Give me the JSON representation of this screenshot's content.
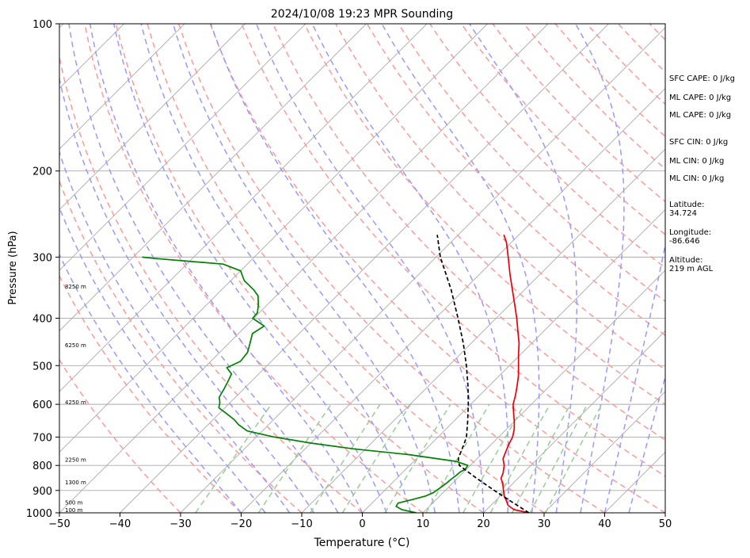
{
  "chart_data": {
    "type": "line",
    "title": "2024/10/08 19:23 MPR Sounding",
    "xlabel": "Temperature (°C)",
    "ylabel": "Pressure (hPa)",
    "xlim": [
      -50,
      50
    ],
    "ylim": [
      1000,
      100
    ],
    "y_scale": "log",
    "grid": true,
    "x_ticks": [
      -50,
      -40,
      -30,
      -20,
      -10,
      0,
      10,
      20,
      30,
      40,
      50
    ],
    "x_tick_labels": [
      "−50",
      "−40",
      "−30",
      "−20",
      "−10",
      "0",
      "10",
      "20",
      "30",
      "40",
      "50"
    ],
    "y_ticks": [
      1000,
      900,
      800,
      700,
      600,
      500,
      400,
      300,
      200,
      100
    ],
    "y_tick_labels": [
      "1000",
      "900",
      "800",
      "700",
      "600",
      "500",
      "400",
      "300",
      "200",
      "100"
    ],
    "series": [
      {
        "role": "temperature",
        "color": "#e8000b",
        "points": [
          [
            1000,
            27.5
          ],
          [
            985,
            24.5
          ],
          [
            965,
            22.8
          ],
          [
            945,
            21.8
          ],
          [
            925,
            20.7
          ],
          [
            900,
            19.6
          ],
          [
            870,
            18.3
          ],
          [
            850,
            17.2
          ],
          [
            830,
            16.7
          ],
          [
            800,
            15.6
          ],
          [
            775,
            14.3
          ],
          [
            750,
            13.6
          ],
          [
            725,
            12.9
          ],
          [
            700,
            12.3
          ],
          [
            675,
            11.3
          ],
          [
            650,
            10.0
          ],
          [
            625,
            8.5
          ],
          [
            600,
            7.0
          ],
          [
            575,
            5.9
          ],
          [
            550,
            4.6
          ],
          [
            525,
            3.2
          ],
          [
            500,
            1.5
          ],
          [
            475,
            -0.3
          ],
          [
            450,
            -2.1
          ],
          [
            425,
            -4.3
          ],
          [
            400,
            -6.6
          ],
          [
            375,
            -9.2
          ],
          [
            350,
            -12.0
          ],
          [
            325,
            -15.0
          ],
          [
            300,
            -18.1
          ],
          [
            280,
            -20.8
          ],
          [
            270,
            -22.5
          ]
        ]
      },
      {
        "role": "dewpoint",
        "color": "#008000",
        "points": [
          [
            1000,
            8.9
          ],
          [
            985,
            6.0
          ],
          [
            970,
            4.5
          ],
          [
            955,
            4.3
          ],
          [
            940,
            6.0
          ],
          [
            925,
            7.6
          ],
          [
            910,
            8.4
          ],
          [
            890,
            8.7
          ],
          [
            870,
            9.0
          ],
          [
            855,
            9.1
          ],
          [
            840,
            9.3
          ],
          [
            825,
            9.4
          ],
          [
            815,
            9.8
          ],
          [
            800,
            9.6
          ],
          [
            785,
            7.0
          ],
          [
            760,
            -2.0
          ],
          [
            740,
            -12.0
          ],
          [
            720,
            -20.0
          ],
          [
            700,
            -27.0
          ],
          [
            680,
            -32.5
          ],
          [
            660,
            -35.0
          ],
          [
            645,
            -36.5
          ],
          [
            625,
            -39.0
          ],
          [
            610,
            -41.0
          ],
          [
            595,
            -41.7
          ],
          [
            580,
            -42.7
          ],
          [
            560,
            -43.2
          ],
          [
            540,
            -43.8
          ],
          [
            520,
            -44.5
          ],
          [
            505,
            -46.3
          ],
          [
            490,
            -45.1
          ],
          [
            470,
            -45.4
          ],
          [
            450,
            -46.5
          ],
          [
            430,
            -47.7
          ],
          [
            415,
            -47.0
          ],
          [
            400,
            -50.2
          ],
          [
            390,
            -50.3
          ],
          [
            375,
            -51.5
          ],
          [
            360,
            -53.0
          ],
          [
            350,
            -54.7
          ],
          [
            335,
            -57.8
          ],
          [
            320,
            -60.0
          ],
          [
            310,
            -64.0
          ],
          [
            302,
            -76.0
          ],
          [
            300,
            -78.5
          ]
        ]
      },
      {
        "role": "parcel",
        "color": "#000000",
        "dashed": true,
        "points": [
          [
            1000,
            27.5
          ],
          [
            950,
            22.9
          ],
          [
            900,
            18.1
          ],
          [
            850,
            13.2
          ],
          [
            800,
            8.2
          ],
          [
            775,
            6.9
          ],
          [
            750,
            6.2
          ],
          [
            725,
            5.5
          ],
          [
            700,
            4.7
          ],
          [
            650,
            2.3
          ],
          [
            600,
            -0.4
          ],
          [
            550,
            -3.5
          ],
          [
            500,
            -7.1
          ],
          [
            450,
            -11.3
          ],
          [
            400,
            -16.3
          ],
          [
            350,
            -22.1
          ],
          [
            300,
            -29.3
          ],
          [
            270,
            -33.5
          ]
        ]
      }
    ],
    "height_labels": [
      {
        "p": 988,
        "label": "100 m"
      },
      {
        "p": 955,
        "label": "500 m"
      },
      {
        "p": 867,
        "label": "1300 m"
      },
      {
        "p": 780,
        "label": "2250 m"
      },
      {
        "p": 595,
        "label": "4250 m"
      },
      {
        "p": 455,
        "label": "6250 m"
      },
      {
        "p": 345,
        "label": "8250 m"
      }
    ],
    "side_panel": [
      {
        "label": "SFC CAPE: 0 J/kg"
      },
      {
        "label": "ML CAPE: 0 J/kg"
      },
      {
        "label": "ML CAPE: 0 J/kg"
      },
      {
        "label": "SFC CIN: 0 J/kg"
      },
      {
        "label": "ML CIN: 0 J/kg"
      },
      {
        "label": "ML CIN: 0 J/kg"
      },
      {
        "label": "Latitude:",
        "value": "34.724"
      },
      {
        "label": "Longitude:",
        "value": "-86.646"
      },
      {
        "label": "Altitude:",
        "value": "219 m AGL"
      }
    ],
    "colors": {
      "dry_adiabats": "#ff9999",
      "moist_adiabats": "#9999ff",
      "mixing_ratio": "#99cc99",
      "isotherms": "#aaaaaa",
      "isobars": "#aaaaaa"
    }
  }
}
